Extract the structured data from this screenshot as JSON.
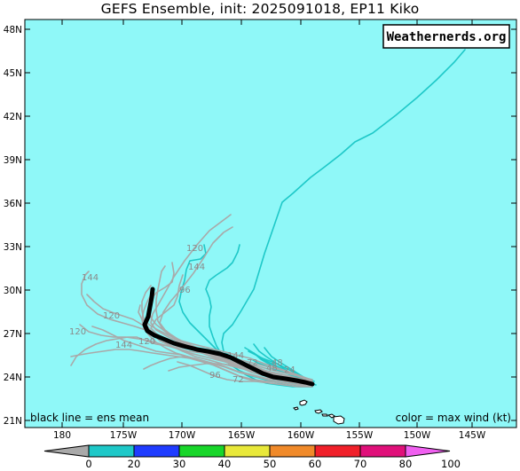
{
  "title": "GEFS Ensemble, init: 2025091018, EP11 Kiko",
  "watermark": "Weathernerds.org",
  "bottom_left_note": "black line = ens mean",
  "bottom_right_note": "color = max wind (kt)",
  "colors": {
    "ocean": "#8ff8f8",
    "land": "#ffffff",
    "mean_track": "#000000",
    "member_track_gray": "#a9a9a9",
    "member_track_teal": "#1ec8c8"
  },
  "lat_labels": [
    "21N",
    "24N",
    "27N",
    "30N",
    "33N",
    "36N",
    "39N",
    "42N",
    "45N",
    "48N"
  ],
  "lon_labels": [
    "180",
    "175W",
    "170W",
    "165W",
    "160W",
    "155W",
    "150W",
    "145W"
  ],
  "forecast_hour_labels": [
    "120",
    "144",
    "120",
    "144",
    "120",
    "144",
    "96",
    "120",
    "144",
    "72",
    "96",
    "48",
    "72",
    "24",
    "48"
  ],
  "colorbar": {
    "bins": [
      {
        "from": 0,
        "to": 20,
        "color": "#a9a9a9"
      },
      {
        "from": 20,
        "to": 30,
        "color": "#1ec8c8"
      },
      {
        "from": 30,
        "to": 40,
        "color": "#1f3cff"
      },
      {
        "from": 40,
        "to": 50,
        "color": "#18d62a"
      },
      {
        "from": 50,
        "to": 60,
        "color": "#e8e83a"
      },
      {
        "from": 60,
        "to": 70,
        "color": "#f08a2a"
      },
      {
        "from": 70,
        "to": 80,
        "color": "#f0202a"
      },
      {
        "from": 80,
        "to": 100,
        "color": "#e0107a"
      },
      {
        "from": 100,
        "to": null,
        "color": "#f060f0"
      }
    ],
    "tick_labels": [
      "0",
      "20",
      "30",
      "40",
      "50",
      "60",
      "70",
      "80",
      "100"
    ]
  }
}
